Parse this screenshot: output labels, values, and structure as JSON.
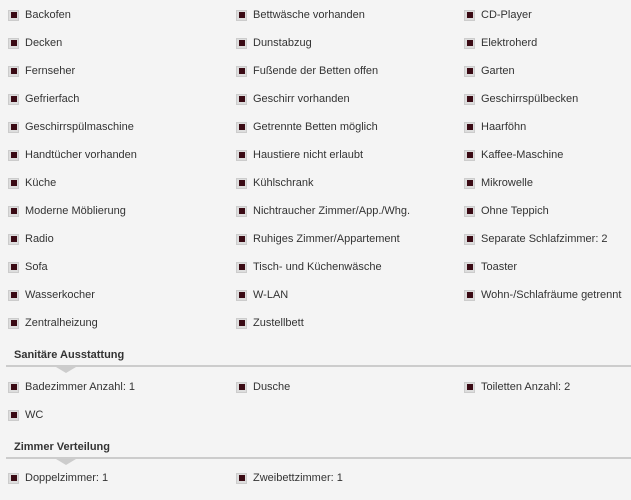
{
  "colors": {
    "checkbox_fill": "#3a0a14",
    "background": "#f4f4f4"
  },
  "amenities": [
    "Backofen",
    "Bettwäsche vorhanden",
    "CD-Player",
    "Decken",
    "Dunstabzug",
    "Elektroherd",
    "Fernseher",
    "Fußende der Betten offen",
    "Garten",
    "Gefrierfach",
    "Geschirr vorhanden",
    "Geschirrspülbecken",
    "Geschirrspülmaschine",
    "Getrennte Betten möglich",
    "Haarföhn",
    "Handtücher vorhanden",
    "Haustiere nicht erlaubt",
    "Kaffee-Maschine",
    "Küche",
    "Kühlschrank",
    "Mikrowelle",
    "Moderne Möblierung",
    "Nichtraucher Zimmer/App./Whg.",
    "Ohne Teppich",
    "Radio",
    "Ruhiges Zimmer/Appartement",
    "Separate Schlafzimmer: 2",
    "Sofa",
    "Tisch- und Küchenwäsche",
    "Toaster",
    "Wasserkocher",
    "W-LAN",
    "Wohn-/Schlafräume getrennt",
    "Zentralheizung",
    "Zustellbett"
  ],
  "sanitary": {
    "title": "Sanitäre Ausstattung",
    "items": [
      "Badezimmer Anzahl: 1",
      "Dusche",
      "Toiletten Anzahl: 2",
      "WC"
    ]
  },
  "rooms": {
    "title": "Zimmer Verteilung",
    "items": [
      "Doppelzimmer: 1",
      "Zweibettzimmer: 1"
    ]
  }
}
